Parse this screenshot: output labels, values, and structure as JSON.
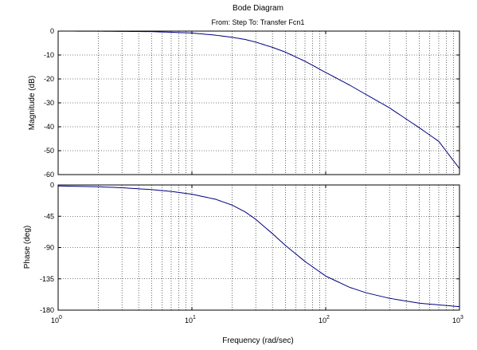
{
  "colors": {
    "background": "#ffffff",
    "axes": "#000000",
    "grid": "#000000",
    "trace": "#00007f"
  },
  "chart_data": {
    "type": "line",
    "title": "Bode Diagram",
    "subtitle": "From: Step  To: Transfer Fcn1",
    "xlabel": "Frequency  (rad/sec)",
    "x_scale": "log",
    "xlim": [
      1,
      1000
    ],
    "x_ticks": [
      {
        "value": 1,
        "base": "10",
        "exp": "0"
      },
      {
        "value": 10,
        "base": "10",
        "exp": "1"
      },
      {
        "value": 100,
        "base": "10",
        "exp": "2"
      },
      {
        "value": 1000,
        "base": "10",
        "exp": "3"
      }
    ],
    "grid": true,
    "panels": [
      {
        "name": "magnitude",
        "ylabel": "Magnitude (dB)",
        "ylim": [
          -60,
          0
        ],
        "y_ticks": [
          0,
          -10,
          -20,
          -30,
          -40,
          -50,
          -60
        ],
        "y_tick_labels": [
          "0",
          "-10",
          "-20",
          "-30",
          "-40",
          "-50",
          "-60"
        ],
        "series": [
          {
            "x": [
              1,
              2,
              5,
              10,
              15,
              20,
              25,
              30,
              40,
              50,
              70,
              100,
              150,
              200,
              300,
              500,
              700,
              1000
            ],
            "values": [
              -0.01,
              -0.04,
              -0.22,
              -0.8,
              -1.7,
              -2.6,
              -3.5,
              -4.6,
              -6.8,
              -8.8,
              -12.6,
              -17.3,
              -22.5,
              -26.5,
              -32.1,
              -40.4,
              -46.1,
              -57.5
            ]
          }
        ]
      },
      {
        "name": "phase",
        "ylabel": "Phase (deg)",
        "ylim": [
          -180,
          0
        ],
        "y_ticks": [
          0,
          -45,
          -90,
          -135,
          -180
        ],
        "y_tick_labels": [
          "0",
          "-45",
          "-90",
          "-135",
          "-180"
        ],
        "series": [
          {
            "x": [
              1,
              2,
              3,
              5,
              7,
              10,
              15,
              20,
              25,
              30,
              40,
              50,
              70,
              100,
              150,
              200,
              300,
              500,
              1000
            ],
            "values": [
              -1.4,
              -2.6,
              -4.0,
              -6.7,
              -9.3,
              -13.3,
              -20.5,
              -29.0,
              -38.7,
              -49.4,
              -70.0,
              -87.0,
              -110.0,
              -131.0,
              -147.0,
              -155.0,
              -163.0,
              -170.0,
              -175.0
            ]
          }
        ]
      }
    ]
  }
}
